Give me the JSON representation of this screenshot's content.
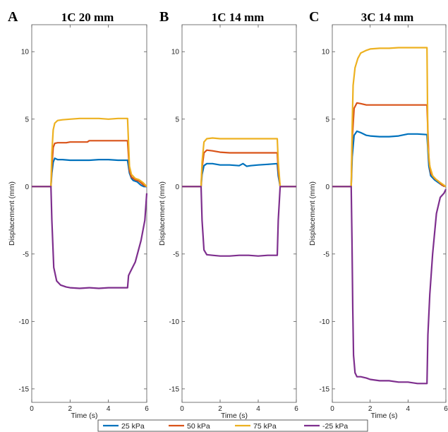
{
  "figure": {
    "legend_label": ""
  },
  "chart_data": [
    {
      "type": "line",
      "panel": "A",
      "title": "1C 20 mm",
      "xlabel": "Time (s)",
      "ylabel": "Displacement (mm)",
      "xlim": [
        0,
        6
      ],
      "ylim": [
        -16,
        12
      ],
      "xticks": [
        "0",
        "2",
        "4",
        "6"
      ],
      "yticks": [
        "-15",
        "-10",
        "-5",
        "0",
        "5",
        "10"
      ],
      "xtick_values": [
        0,
        2,
        4,
        6
      ],
      "ytick_values": [
        -15,
        -10,
        -5,
        0,
        5,
        10
      ],
      "grid": false,
      "series": [
        {
          "name": "25 kPa",
          "color": "#0072BD",
          "x": [
            0,
            1.0,
            1.05,
            1.12,
            1.2,
            1.35,
            1.6,
            2.0,
            2.5,
            3.0,
            3.5,
            4.0,
            4.5,
            5.0,
            5.1,
            5.2,
            5.3,
            5.5,
            5.7,
            5.85,
            6.0
          ],
          "y": [
            0,
            0,
            1.0,
            1.8,
            2.1,
            2.0,
            2.0,
            1.95,
            1.95,
            1.95,
            2.0,
            2.0,
            1.95,
            1.95,
            1.0,
            0.6,
            0.45,
            0.35,
            0.1,
            0.0,
            0.0
          ]
        },
        {
          "name": "50 kPa",
          "color": "#D95319",
          "x": [
            0,
            1.0,
            1.05,
            1.12,
            1.2,
            1.35,
            1.8,
            2.0,
            2.5,
            2.9,
            3.0,
            3.5,
            4.0,
            4.5,
            5.0,
            5.1,
            5.2,
            5.4,
            5.6,
            5.85,
            6.0
          ],
          "y": [
            0,
            0,
            1.5,
            2.9,
            3.2,
            3.25,
            3.25,
            3.3,
            3.3,
            3.3,
            3.4,
            3.4,
            3.4,
            3.4,
            3.4,
            1.2,
            0.7,
            0.5,
            0.4,
            0.1,
            0.0
          ]
        },
        {
          "name": "75 kPa",
          "color": "#EDB120",
          "x": [
            0,
            1.0,
            1.05,
            1.12,
            1.2,
            1.35,
            1.6,
            2.0,
            2.5,
            3.0,
            3.5,
            4.0,
            4.5,
            5.0,
            5.1,
            5.2,
            5.4,
            5.6,
            5.8,
            6.0
          ],
          "y": [
            0,
            0,
            2.5,
            4.2,
            4.7,
            4.9,
            4.95,
            5.0,
            5.05,
            5.05,
            5.05,
            5.0,
            5.05,
            5.05,
            1.5,
            0.9,
            0.6,
            0.5,
            0.3,
            0.0
          ]
        },
        {
          "name": "-25 kPa",
          "color": "#7E2F8E",
          "x": [
            0,
            1.0,
            1.05,
            1.15,
            1.3,
            1.5,
            1.8,
            2.0,
            2.5,
            3.0,
            3.5,
            4.0,
            4.5,
            5.0,
            5.05,
            5.15,
            5.4,
            5.7,
            5.9,
            6.0
          ],
          "y": [
            0,
            0,
            -2.5,
            -6.0,
            -7.0,
            -7.3,
            -7.45,
            -7.5,
            -7.55,
            -7.5,
            -7.55,
            -7.5,
            -7.5,
            -7.5,
            -6.6,
            -6.3,
            -5.6,
            -4.0,
            -2.5,
            -0.5
          ]
        }
      ]
    },
    {
      "type": "line",
      "panel": "B",
      "title": "1C 14 mm",
      "xlabel": "Time (s)",
      "ylabel": "Displacement (mm)",
      "xlim": [
        0,
        6
      ],
      "ylim": [
        -16,
        12
      ],
      "xticks": [
        "0",
        "2",
        "4",
        "6"
      ],
      "yticks": [
        "-15",
        "-10",
        "-5",
        "0",
        "5",
        "10"
      ],
      "xtick_values": [
        0,
        2,
        4,
        6
      ],
      "ytick_values": [
        -15,
        -10,
        -5,
        0,
        5,
        10
      ],
      "grid": false,
      "series": [
        {
          "name": "25 kPa",
          "color": "#0072BD",
          "x": [
            0,
            1.0,
            1.05,
            1.15,
            1.3,
            1.6,
            2.0,
            2.5,
            3.0,
            3.2,
            3.4,
            3.6,
            4.0,
            4.5,
            5.0,
            5.05,
            5.15,
            6.0
          ],
          "y": [
            0,
            0,
            0.9,
            1.55,
            1.7,
            1.7,
            1.6,
            1.6,
            1.55,
            1.7,
            1.5,
            1.55,
            1.6,
            1.65,
            1.7,
            0.8,
            0.0,
            0.0
          ]
        },
        {
          "name": "50 kPa",
          "color": "#D95319",
          "x": [
            0,
            1.0,
            1.05,
            1.15,
            1.3,
            1.6,
            2.0,
            2.5,
            3.0,
            3.5,
            4.0,
            4.5,
            5.0,
            5.05,
            5.15,
            6.0
          ],
          "y": [
            0,
            0,
            1.4,
            2.5,
            2.7,
            2.65,
            2.55,
            2.5,
            2.5,
            2.5,
            2.5,
            2.5,
            2.5,
            1.2,
            0.0,
            0.0
          ]
        },
        {
          "name": "75 kPa",
          "color": "#EDB120",
          "x": [
            0,
            1.0,
            1.05,
            1.15,
            1.3,
            1.6,
            2.0,
            2.5,
            3.0,
            3.5,
            4.0,
            4.5,
            5.0,
            5.05,
            5.15,
            6.0
          ],
          "y": [
            0,
            0,
            1.8,
            3.3,
            3.55,
            3.6,
            3.55,
            3.55,
            3.55,
            3.55,
            3.55,
            3.55,
            3.55,
            1.8,
            0.0,
            0.0
          ]
        },
        {
          "name": "-25 kPa",
          "color": "#7E2F8E",
          "x": [
            0,
            1.0,
            1.05,
            1.15,
            1.3,
            1.6,
            2.0,
            2.5,
            3.0,
            3.5,
            4.0,
            4.5,
            5.0,
            5.05,
            5.15,
            6.0
          ],
          "y": [
            0,
            0,
            -2.5,
            -4.7,
            -5.05,
            -5.1,
            -5.15,
            -5.15,
            -5.1,
            -5.1,
            -5.15,
            -5.1,
            -5.1,
            -2.5,
            0.0,
            0.0
          ]
        }
      ]
    },
    {
      "type": "line",
      "panel": "C",
      "title": "3C 14 mm",
      "xlabel": "Time (s)",
      "ylabel": "Displacement (mm)",
      "xlim": [
        0,
        6
      ],
      "ylim": [
        -16,
        12
      ],
      "xticks": [
        "0",
        "2",
        "4",
        "6"
      ],
      "yticks": [
        "-15",
        "-10",
        "-5",
        "0",
        "5",
        "10"
      ],
      "xtick_values": [
        0,
        2,
        4,
        6
      ],
      "ytick_values": [
        -15,
        -10,
        -5,
        0,
        5,
        10
      ],
      "grid": false,
      "series": [
        {
          "name": "25 kPa",
          "color": "#0072BD",
          "x": [
            0,
            1.0,
            1.05,
            1.15,
            1.3,
            1.5,
            1.8,
            2.0,
            2.5,
            3.0,
            3.5,
            4.0,
            4.5,
            5.0,
            5.1,
            5.2,
            5.4,
            5.6,
            5.8,
            6.0
          ],
          "y": [
            0,
            0,
            2.2,
            3.8,
            4.1,
            4.0,
            3.8,
            3.75,
            3.7,
            3.7,
            3.75,
            3.9,
            3.9,
            3.85,
            1.5,
            0.8,
            0.5,
            0.3,
            0.1,
            0.0
          ]
        },
        {
          "name": "50 kPa",
          "color": "#D95319",
          "x": [
            0,
            1.0,
            1.05,
            1.15,
            1.3,
            1.5,
            1.8,
            2.0,
            2.5,
            3.0,
            3.5,
            4.0,
            4.5,
            5.0,
            5.1,
            5.2,
            5.4,
            5.6,
            5.8,
            6.0
          ],
          "y": [
            0,
            0,
            3.5,
            5.8,
            6.2,
            6.15,
            6.05,
            6.05,
            6.05,
            6.05,
            6.05,
            6.05,
            6.05,
            6.05,
            2.0,
            1.0,
            0.6,
            0.4,
            0.1,
            0.0
          ]
        },
        {
          "name": "75 kPa",
          "color": "#EDB120",
          "x": [
            0,
            1.0,
            1.05,
            1.1,
            1.2,
            1.35,
            1.5,
            1.8,
            2.0,
            2.5,
            3.0,
            3.5,
            4.0,
            4.5,
            5.0,
            5.05,
            5.15,
            5.3,
            5.5,
            5.7,
            5.9,
            6.0
          ],
          "y": [
            0,
            0,
            4.5,
            7.5,
            8.8,
            9.5,
            9.9,
            10.1,
            10.2,
            10.25,
            10.25,
            10.3,
            10.3,
            10.3,
            10.3,
            3.0,
            1.5,
            0.8,
            0.5,
            0.3,
            0.1,
            0.0
          ]
        },
        {
          "name": "-25 kPa",
          "color": "#7E2F8E",
          "x": [
            0,
            1.0,
            1.04,
            1.08,
            1.12,
            1.2,
            1.3,
            1.5,
            1.8,
            2.0,
            2.5,
            3.0,
            3.5,
            4.0,
            4.5,
            5.0,
            5.05,
            5.15,
            5.3,
            5.5,
            5.7,
            5.9,
            6.0
          ],
          "y": [
            0,
            0,
            -4.0,
            -9.0,
            -12.5,
            -13.8,
            -14.1,
            -14.1,
            -14.2,
            -14.3,
            -14.4,
            -14.4,
            -14.5,
            -14.5,
            -14.6,
            -14.6,
            -11.0,
            -8.0,
            -5.0,
            -2.0,
            -0.8,
            -0.5,
            -0.2
          ]
        }
      ]
    }
  ]
}
